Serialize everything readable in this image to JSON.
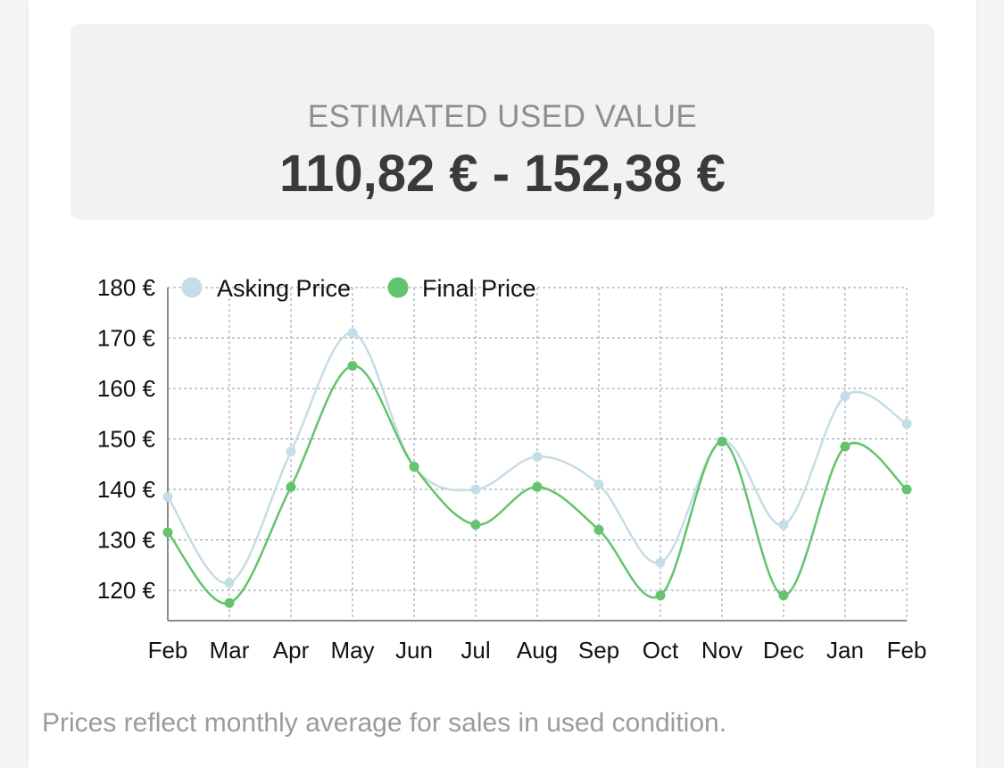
{
  "summary": {
    "label": "ESTIMATED USED VALUE",
    "range": "110,82 € - 152,38 €"
  },
  "footnote": "Prices reflect monthly average for sales in used condition.",
  "chart_data": {
    "type": "line",
    "categories": [
      "Feb",
      "Mar",
      "Apr",
      "May",
      "Jun",
      "Jul",
      "Aug",
      "Sep",
      "Oct",
      "Nov",
      "Dec",
      "Jan",
      "Feb"
    ],
    "y_ticks": [
      "120 €",
      "130 €",
      "140 €",
      "150 €",
      "160 €",
      "170 €",
      "180 €"
    ],
    "ylim": [
      114,
      180
    ],
    "grid": true,
    "legend_position": "top-left",
    "series": [
      {
        "name": "Asking Price",
        "color": "#c5dde6",
        "values": [
          138.5,
          121.5,
          147.5,
          171,
          144.5,
          140,
          146.5,
          141,
          125.5,
          149.5,
          133,
          158.5,
          153
        ]
      },
      {
        "name": "Final Price",
        "color": "#63c36e",
        "values": [
          131.5,
          117.5,
          140.5,
          164.5,
          144.5,
          133,
          140.5,
          132,
          119,
          149.5,
          119,
          148.5,
          140
        ]
      }
    ]
  }
}
